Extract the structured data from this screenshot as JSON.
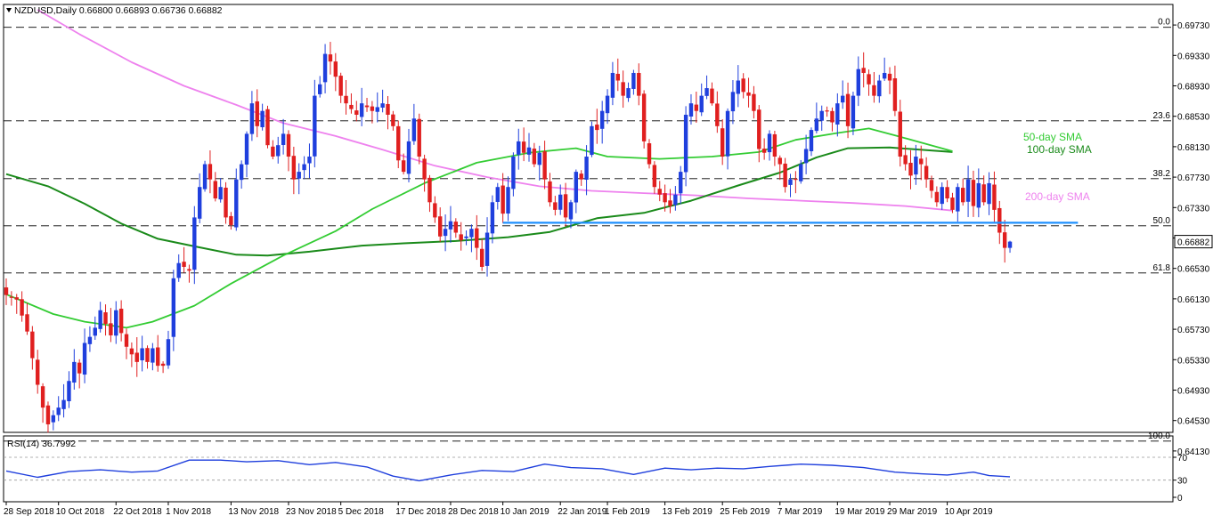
{
  "header": {
    "symbol_line": "NZDUSD,Daily  0.66800 0.66893 0.66736 0.66882",
    "rsi_line": "RSI(14) 36.7992"
  },
  "price_axis": {
    "ticks": [
      "0.69730",
      "0.69330",
      "0.68930",
      "0.68530",
      "0.68130",
      "0.67730",
      "0.67330",
      "0.66930",
      "0.66530",
      "0.66130",
      "0.65730",
      "0.65330",
      "0.64930",
      "0.64530",
      "0.64130"
    ],
    "current_price": "0.66882"
  },
  "rsi_axis": {
    "ticks": [
      "70",
      "30",
      "0"
    ]
  },
  "date_axis": {
    "labels": [
      "28 Sep 2018",
      "10 Oct 2018",
      "22 Oct 2018",
      "1 Nov 2018",
      "13 Nov 2018",
      "23 Nov 2018",
      "5 Dec 2018",
      "17 Dec 2018",
      "28 Dec 2018",
      "10 Jan 2019",
      "22 Jan 2019",
      "1 Feb 2019",
      "13 Feb 2019",
      "25 Feb 2019",
      "7 Mar 2019",
      "19 Mar 2019",
      "29 Mar 2019",
      "10 Apr 2019"
    ]
  },
  "fibonacci": [
    "0.0",
    "23.6",
    "38.2",
    "50.0",
    "61.8",
    "100.0"
  ],
  "sma_labels": {
    "sma50": "50-day SMA",
    "sma100": "100-day SMA",
    "sma200": "200-day SMA"
  },
  "colors": {
    "bull": "#1f3fdd",
    "bear": "#e01f1f",
    "sma50": "#33cc33",
    "sma100": "#1a8a1a",
    "sma200": "#ee82ee",
    "support": "#1e90ff",
    "rsi": "#1f3fdd",
    "grid": "#000000",
    "current_tag": "#ffffff"
  },
  "chart_data": {
    "type": "candlestick",
    "symbol": "NZDUSD",
    "timeframe": "Daily",
    "last_bar": {
      "open": 0.668,
      "high": 0.66893,
      "low": 0.66736,
      "close": 0.66882
    },
    "y_range": [
      0.6413,
      0.6993
    ],
    "fibonacci_levels": [
      {
        "label": "0.0",
        "price": 0.697
      },
      {
        "label": "23.6",
        "price": 0.6847
      },
      {
        "label": "38.2",
        "price": 0.6771
      },
      {
        "label": "50.0",
        "price": 0.6709
      },
      {
        "label": "61.8",
        "price": 0.6647
      },
      {
        "label": "100.0",
        "price": 0.6426
      }
    ],
    "support_line": {
      "price": 0.6713,
      "from": "3 Jan 2019",
      "to": "23 Apr 2019"
    },
    "sma": {
      "sma50": [
        [
          0,
          0.6619
        ],
        [
          9,
          0.6593
        ],
        [
          15,
          0.6583
        ],
        [
          23,
          0.6575
        ],
        [
          28,
          0.6583
        ],
        [
          36,
          0.6604
        ],
        [
          43,
          0.6633
        ],
        [
          53,
          0.667
        ],
        [
          63,
          0.6702
        ],
        [
          70,
          0.6731
        ],
        [
          80,
          0.6765
        ],
        [
          90,
          0.6792
        ],
        [
          100,
          0.6805
        ],
        [
          109,
          0.6811
        ],
        [
          115,
          0.68
        ],
        [
          125,
          0.6797
        ],
        [
          135,
          0.68
        ],
        [
          144,
          0.6806
        ],
        [
          151,
          0.6822
        ],
        [
          159,
          0.6831
        ],
        [
          165,
          0.6837
        ],
        [
          171,
          0.6826
        ],
        [
          181,
          0.6807
        ]
      ],
      "sma100": [
        [
          0,
          0.6777
        ],
        [
          8,
          0.6761
        ],
        [
          15,
          0.6738
        ],
        [
          22,
          0.6712
        ],
        [
          29,
          0.6692
        ],
        [
          36,
          0.6682
        ],
        [
          44,
          0.6671
        ],
        [
          50,
          0.667
        ],
        [
          58,
          0.6675
        ],
        [
          68,
          0.6683
        ],
        [
          76,
          0.6686
        ],
        [
          86,
          0.6689
        ],
        [
          96,
          0.6694
        ],
        [
          104,
          0.6701
        ],
        [
          113,
          0.6719
        ],
        [
          122,
          0.6726
        ],
        [
          131,
          0.6742
        ],
        [
          140,
          0.6762
        ],
        [
          148,
          0.6779
        ],
        [
          155,
          0.6799
        ],
        [
          161,
          0.6811
        ],
        [
          169,
          0.6812
        ],
        [
          181,
          0.6806
        ]
      ],
      "sma200": [
        [
          6,
          0.6993
        ],
        [
          14,
          0.6961
        ],
        [
          24,
          0.6924
        ],
        [
          34,
          0.6893
        ],
        [
          44,
          0.6868
        ],
        [
          53,
          0.6844
        ],
        [
          63,
          0.6827
        ],
        [
          72,
          0.6809
        ],
        [
          82,
          0.6788
        ],
        [
          92,
          0.6773
        ],
        [
          102,
          0.6761
        ],
        [
          112,
          0.6755
        ],
        [
          122,
          0.6752
        ],
        [
          132,
          0.6749
        ],
        [
          142,
          0.6745
        ],
        [
          152,
          0.6742
        ],
        [
          162,
          0.6739
        ],
        [
          172,
          0.6735
        ],
        [
          181,
          0.6729
        ]
      ]
    },
    "rsi": {
      "period": 14,
      "last": 36.7992,
      "y_range": [
        0,
        100
      ],
      "levels": [
        70,
        30
      ],
      "points": [
        [
          0,
          46
        ],
        [
          6,
          35
        ],
        [
          12,
          45
        ],
        [
          18,
          48
        ],
        [
          24,
          44
        ],
        [
          29,
          46
        ],
        [
          35,
          65
        ],
        [
          41,
          65
        ],
        [
          46,
          62
        ],
        [
          52,
          64
        ],
        [
          58,
          57
        ],
        [
          63,
          61
        ],
        [
          69,
          53
        ],
        [
          74,
          37
        ],
        [
          79,
          29
        ],
        [
          85,
          39
        ],
        [
          91,
          47
        ],
        [
          97,
          45
        ],
        [
          103,
          58
        ],
        [
          108,
          52
        ],
        [
          114,
          50
        ],
        [
          120,
          40
        ],
        [
          126,
          51
        ],
        [
          131,
          48
        ],
        [
          136,
          51
        ],
        [
          141,
          50
        ],
        [
          146,
          54
        ],
        [
          152,
          58
        ],
        [
          158,
          56
        ],
        [
          164,
          52
        ],
        [
          170,
          44
        ],
        [
          175,
          41
        ],
        [
          180,
          39
        ],
        [
          185,
          44
        ],
        [
          188,
          38
        ],
        [
          192,
          36
        ]
      ]
    }
  }
}
